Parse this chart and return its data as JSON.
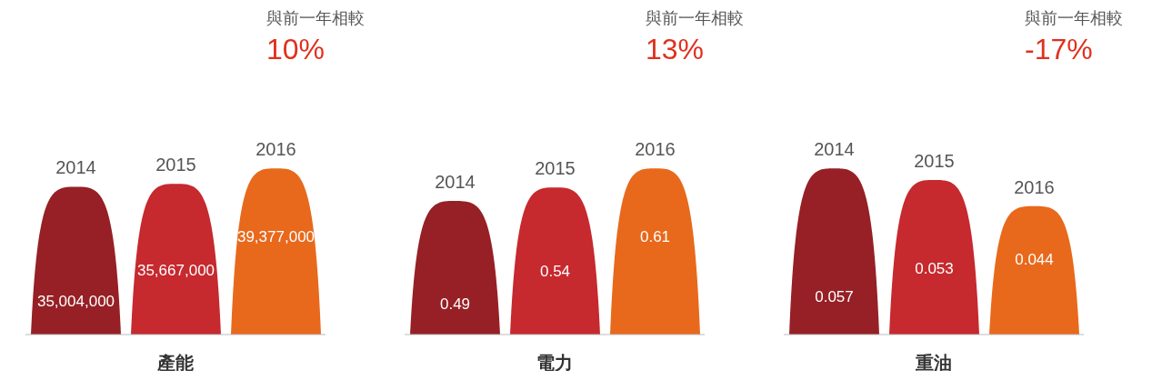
{
  "chart_data": [
    {
      "type": "bar",
      "xlabel": "產能",
      "categories": [
        "2014",
        "2015",
        "2016"
      ],
      "values": [
        35004000,
        35667000,
        39377000
      ],
      "value_labels": [
        "35,004,000",
        "35,667,000",
        "39,377,000"
      ],
      "colors": [
        "#962025",
        "#c6292e",
        "#e8691c"
      ],
      "annotations": [
        "與前一年相較",
        "10%"
      ]
    },
    {
      "type": "bar",
      "xlabel": "電力",
      "categories": [
        "2014",
        "2015",
        "2016"
      ],
      "values": [
        0.49,
        0.54,
        0.61
      ],
      "value_labels": [
        "0.49",
        "0.54",
        "0.61"
      ],
      "colors": [
        "#962025",
        "#c6292e",
        "#e8691c"
      ],
      "annotations": [
        "與前一年相較",
        "13%"
      ]
    },
    {
      "type": "bar",
      "xlabel": "重油",
      "categories": [
        "2014",
        "2015",
        "2016"
      ],
      "values": [
        0.057,
        0.053,
        0.044
      ],
      "value_labels": [
        "0.057",
        "0.053",
        "0.044"
      ],
      "colors": [
        "#962025",
        "#c6292e",
        "#e8691c"
      ],
      "annotations": [
        "與前一年相較",
        "-17%"
      ]
    }
  ]
}
